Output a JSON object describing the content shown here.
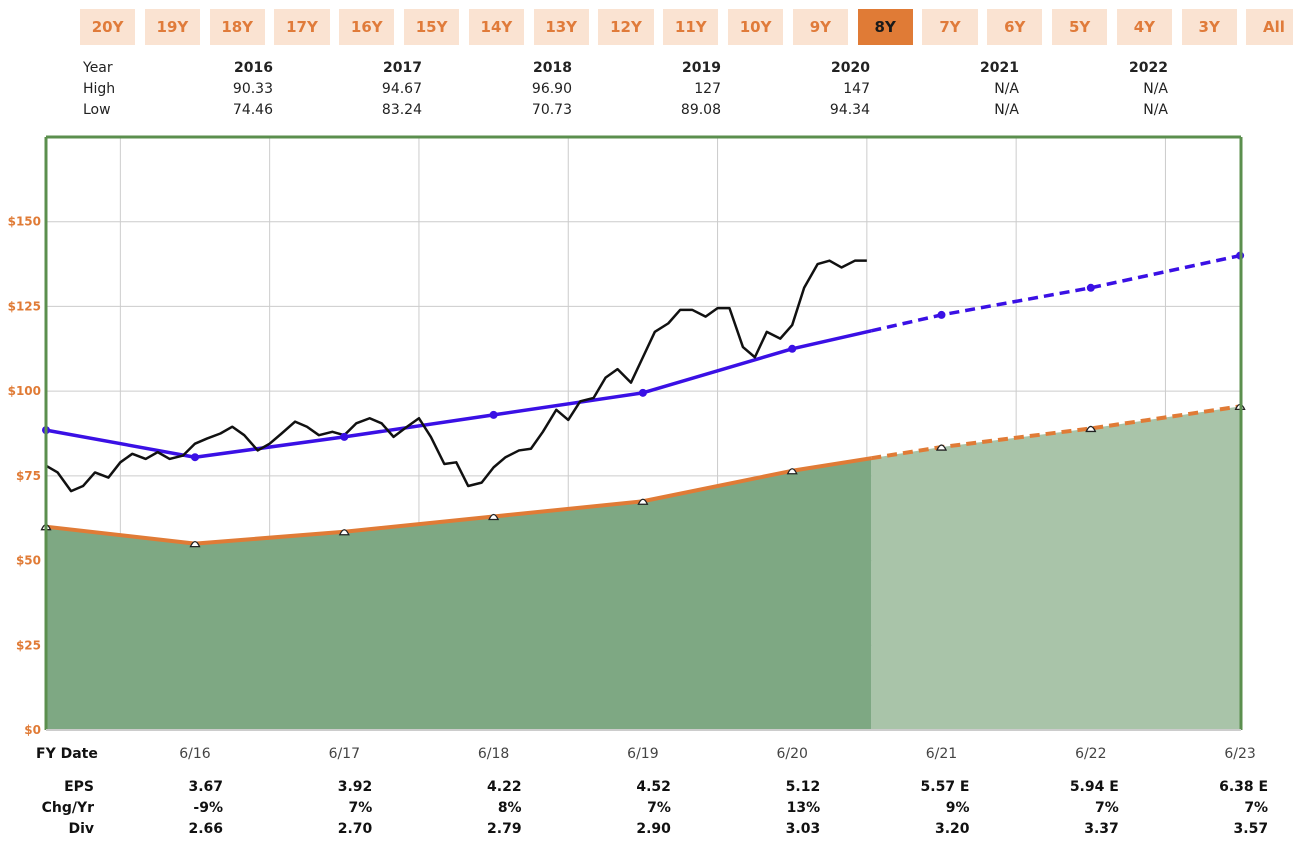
{
  "tabs": [
    {
      "label": "20Y",
      "active": false
    },
    {
      "label": "19Y",
      "active": false
    },
    {
      "label": "18Y",
      "active": false
    },
    {
      "label": "17Y",
      "active": false
    },
    {
      "label": "16Y",
      "active": false
    },
    {
      "label": "15Y",
      "active": false
    },
    {
      "label": "14Y",
      "active": false
    },
    {
      "label": "13Y",
      "active": false
    },
    {
      "label": "12Y",
      "active": false
    },
    {
      "label": "11Y",
      "active": false
    },
    {
      "label": "10Y",
      "active": false
    },
    {
      "label": "9Y",
      "active": false
    },
    {
      "label": "8Y",
      "active": true
    },
    {
      "label": "7Y",
      "active": false
    },
    {
      "label": "6Y",
      "active": false
    },
    {
      "label": "5Y",
      "active": false
    },
    {
      "label": "4Y",
      "active": false
    },
    {
      "label": "3Y",
      "active": false
    },
    {
      "label": "All",
      "active": false
    }
  ],
  "year_table": {
    "labels": {
      "year": "Year",
      "high": "High",
      "low": "Low"
    },
    "columns": [
      {
        "year": "2016",
        "high": "90.33",
        "low": "74.46"
      },
      {
        "year": "2017",
        "high": "94.67",
        "low": "83.24"
      },
      {
        "year": "2018",
        "high": "96.90",
        "low": "70.73"
      },
      {
        "year": "2019",
        "high": "127",
        "low": "89.08"
      },
      {
        "year": "2020",
        "high": "147",
        "low": "94.34"
      },
      {
        "year": "2021",
        "high": "N/A",
        "low": "N/A"
      },
      {
        "year": "2022",
        "high": "N/A",
        "low": "N/A"
      }
    ]
  },
  "bottom_table": {
    "labels": {
      "date": "FY Date",
      "eps": "EPS",
      "chg": "Chg/Yr",
      "div": "Div"
    },
    "columns": [
      {
        "date": "6/16",
        "eps": "3.67",
        "chg": "-9%",
        "div": "2.66"
      },
      {
        "date": "6/17",
        "eps": "3.92",
        "chg": "7%",
        "div": "2.70"
      },
      {
        "date": "6/18",
        "eps": "4.22",
        "chg": "8%",
        "div": "2.79"
      },
      {
        "date": "6/19",
        "eps": "4.52",
        "chg": "7%",
        "div": "2.90"
      },
      {
        "date": "6/20",
        "eps": "5.12",
        "chg": "13%",
        "div": "3.03"
      },
      {
        "date": "6/21",
        "eps": "5.57 E",
        "chg": "9%",
        "div": "3.20"
      },
      {
        "date": "6/22",
        "eps": "5.94 E",
        "chg": "7%",
        "div": "3.37"
      },
      {
        "date": "6/23",
        "eps": "6.38 E",
        "chg": "7%",
        "div": "3.57"
      }
    ]
  },
  "colors": {
    "accent": "#e07b36",
    "tab_bg": "#fae3d2",
    "tab_text": "#e07b3a",
    "eps_fill": "#7ea883",
    "eps_fill_estimate": "#a9c4a9",
    "eps_line": "#e07b36",
    "pe_line": "#3a10e5",
    "price_line": "#111111",
    "frame": "#5b8f4e",
    "axis_label": "#e07b36"
  },
  "chart_data": {
    "type": "line",
    "y_tick_labels": [
      "$0",
      "$25",
      "$50",
      "$75",
      "$100",
      "$125",
      "$150"
    ],
    "y_ticks": [
      0,
      25,
      50,
      75,
      100,
      125,
      150
    ],
    "ylim": [
      0,
      175
    ],
    "x_tick_labels": [
      "6/16",
      "6/17",
      "6/18",
      "6/19",
      "6/20",
      "6/21",
      "6/22",
      "6/23"
    ],
    "estimate_start": 4.53,
    "series": [
      {
        "key": "earnings",
        "style": "area",
        "x": [
          -1,
          0,
          1,
          2,
          3,
          4,
          5,
          6,
          7
        ],
        "y": [
          60,
          55,
          58.5,
          63,
          67.5,
          76.5,
          83.5,
          89,
          95.5
        ],
        "estimate_from_index": 5
      },
      {
        "key": "normal_pe",
        "style": "line",
        "x": [
          -1,
          0,
          1,
          2,
          3,
          4,
          5,
          6,
          7
        ],
        "y": [
          88.5,
          80.5,
          86.5,
          93,
          99.5,
          112.5,
          122.5,
          130.5,
          140
        ],
        "estimate_from_index": 5
      },
      {
        "key": "price",
        "style": "line",
        "x": [
          -1,
          -0.92,
          -0.83,
          -0.75,
          -0.67,
          -0.58,
          -0.5,
          -0.42,
          -0.33,
          -0.25,
          -0.17,
          -0.08,
          0,
          0.08,
          0.17,
          0.25,
          0.33,
          0.42,
          0.5,
          0.58,
          0.67,
          0.75,
          0.83,
          0.92,
          1,
          1.08,
          1.17,
          1.25,
          1.33,
          1.42,
          1.5,
          1.58,
          1.67,
          1.75,
          1.83,
          1.92,
          2,
          2.08,
          2.17,
          2.25,
          2.33,
          2.42,
          2.5,
          2.58,
          2.67,
          2.75,
          2.83,
          2.92,
          3,
          3.08,
          3.17,
          3.25,
          3.33,
          3.42,
          3.5,
          3.58,
          3.67,
          3.75,
          3.83,
          3.92,
          4,
          4.08,
          4.17,
          4.25,
          4.33,
          4.42,
          4.5
        ],
        "y": [
          78,
          76,
          70.5,
          72,
          76,
          74.5,
          79,
          81.5,
          80,
          82,
          80,
          81,
          84.5,
          86,
          87.5,
          89.5,
          87,
          82.5,
          84.5,
          87.5,
          91,
          89.5,
          87,
          88,
          87,
          90.5,
          92,
          90.5,
          86.5,
          89.5,
          92,
          86.5,
          78.5,
          79,
          72,
          73,
          77.5,
          80.5,
          82.5,
          83,
          88,
          94.5,
          91.5,
          97,
          98,
          104,
          106.5,
          102.5,
          110,
          117.5,
          120,
          124,
          124,
          122,
          124.5,
          124.5,
          113,
          110,
          117.5,
          115.5,
          119.5,
          130.5,
          137.5,
          138.5,
          136.5,
          138.5,
          138.5
        ]
      }
    ]
  }
}
